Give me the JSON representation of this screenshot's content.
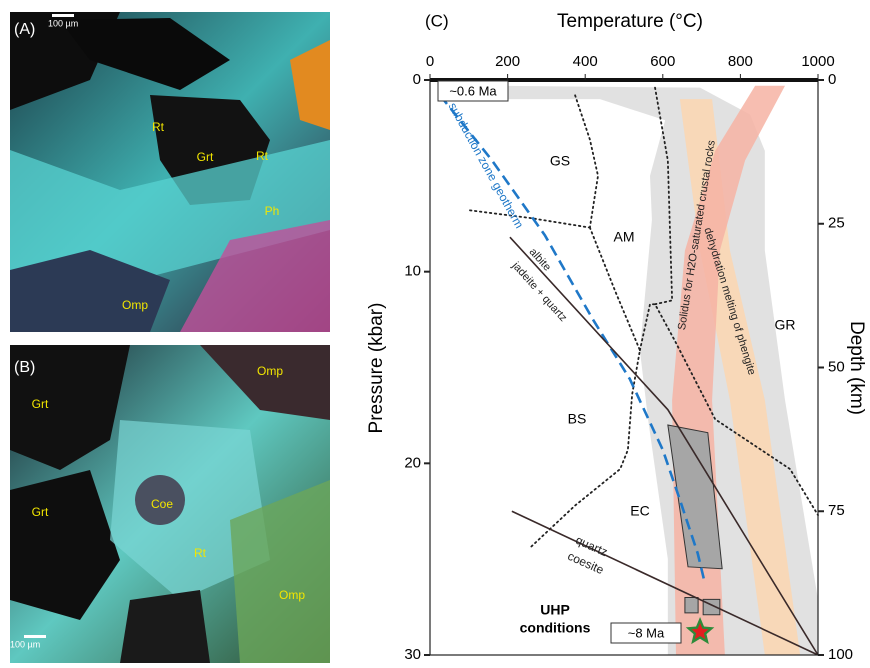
{
  "panels": [
    {
      "label": "(A)",
      "scale": "100 µm",
      "minerals": [
        "Rt",
        "Grt",
        "Rt",
        "Ph",
        "Omp"
      ]
    },
    {
      "label": "(B)",
      "scale": "100 µm",
      "minerals": [
        "Grt",
        "Omp",
        "Coe",
        "Grt",
        "Rt",
        "Omp"
      ]
    }
  ],
  "chart_data": {
    "type": "pt-diagram",
    "panel_label": "(C)",
    "x_label": "Temperature (°C)",
    "y_label": "Pressure (kbar)",
    "y2_label": "Depth (km)",
    "xlim": [
      0,
      1000
    ],
    "xticks": [
      0,
      200,
      400,
      600,
      800,
      1000
    ],
    "ylim": [
      0,
      30
    ],
    "yticks": [
      0,
      10,
      20,
      30
    ],
    "y2lim": [
      0,
      100
    ],
    "y2ticks": [
      0,
      25,
      50,
      75,
      100
    ],
    "bands": [
      {
        "color": "#dcdcdc",
        "x": [
          155,
          696,
          825,
          863,
          863,
          915,
          1000,
          1000,
          613,
          613,
          562,
          541,
          572,
          567,
          606,
          438,
          168
        ],
        "y": [
          0.3,
          0.4,
          1.8,
          3.7,
          8.9,
          16.7,
          27.1,
          30,
          30,
          25,
          17.7,
          14.1,
          7.3,
          5,
          2.1,
          1,
          1
        ]
      },
      {
        "color": "#fbd6b0",
        "x": [
          644,
          696,
          773,
          863,
          954,
          863,
          773,
          727
        ],
        "y": [
          1,
          8.9,
          16.7,
          30,
          30,
          16.7,
          8.9,
          1
        ]
      },
      {
        "color": "#f6b3a3",
        "x": [
          838,
          735,
          657,
          624,
          634,
          760,
          727,
          747,
          812,
          915
        ],
        "y": [
          0.3,
          3.7,
          8.9,
          16.7,
          30,
          30,
          16.7,
          8.9,
          4.2,
          0.3
        ]
      }
    ],
    "boxes": [
      {
        "color": "#a6a6a6",
        "x": [
          613,
          716,
          753,
          665
        ],
        "y": [
          18,
          18.4,
          25.5,
          25.4
        ]
      },
      {
        "color": "#a6a6a6",
        "x": [
          657,
          691,
          691,
          657
        ],
        "y": [
          27,
          27,
          27.8,
          27.8
        ]
      },
      {
        "color": "#a6a6a6",
        "x": [
          704,
          747,
          747,
          704
        ],
        "y": [
          27.1,
          27.1,
          27.9,
          27.9
        ]
      }
    ],
    "boundaries": [
      {
        "x": [
          103,
          258,
          412
        ],
        "y": [
          6.8,
          7.2,
          7.7
        ]
      },
      {
        "x": [
          374,
          412,
          433,
          412
        ],
        "y": [
          0.8,
          3.1,
          5,
          7.7
        ]
      },
      {
        "x": [
          412,
          477,
          541,
          521,
          510,
          490,
          374,
          258
        ],
        "y": [
          7.7,
          11,
          14.1,
          16.4,
          19.3,
          20.3,
          22.2,
          24.4
        ]
      },
      {
        "x": [
          541,
          567,
          580,
          631,
          735,
          928,
          1000
        ],
        "y": [
          14.1,
          11.7,
          11.7,
          13.6,
          17.7,
          20.3,
          22.7
        ]
      },
      {
        "x": [
          580,
          613,
          624,
          580
        ],
        "y": [
          0.4,
          4.2,
          11.5,
          11.7
        ]
      }
    ],
    "series": [
      {
        "name": "subduction zone geotherm",
        "color": "#1f78c8",
        "x": [
          26,
          160,
          296,
          420,
          515,
          600,
          644,
          690,
          709
        ],
        "y": [
          0.8,
          4.2,
          8.1,
          12.5,
          15.6,
          19.3,
          21.9,
          24.7,
          26.3
        ]
      },
      {
        "labels": [
          "albite",
          "jadeite + quartz"
        ],
        "color": "#3a2a2a",
        "x": [
          206,
          613,
          1000
        ],
        "y": [
          8.2,
          17.2,
          30
        ]
      },
      {
        "labels": [
          "quartz",
          "coesite"
        ],
        "color": "#3a2a2a",
        "x": [
          211,
          1000
        ],
        "y": [
          22.5,
          30
        ]
      }
    ],
    "star": {
      "x": 696,
      "y": 28.8
    },
    "field_labels": [
      "GS",
      "AM",
      "BS",
      "EC",
      "GR"
    ],
    "band_labels": [
      "Solidus for H2O-saturated crustal rocks",
      "dehydration melting of phengite"
    ],
    "age_labels": [
      "~0.6 Ma",
      "~8 Ma"
    ],
    "uhp_label": [
      "UHP",
      "conditions"
    ]
  }
}
